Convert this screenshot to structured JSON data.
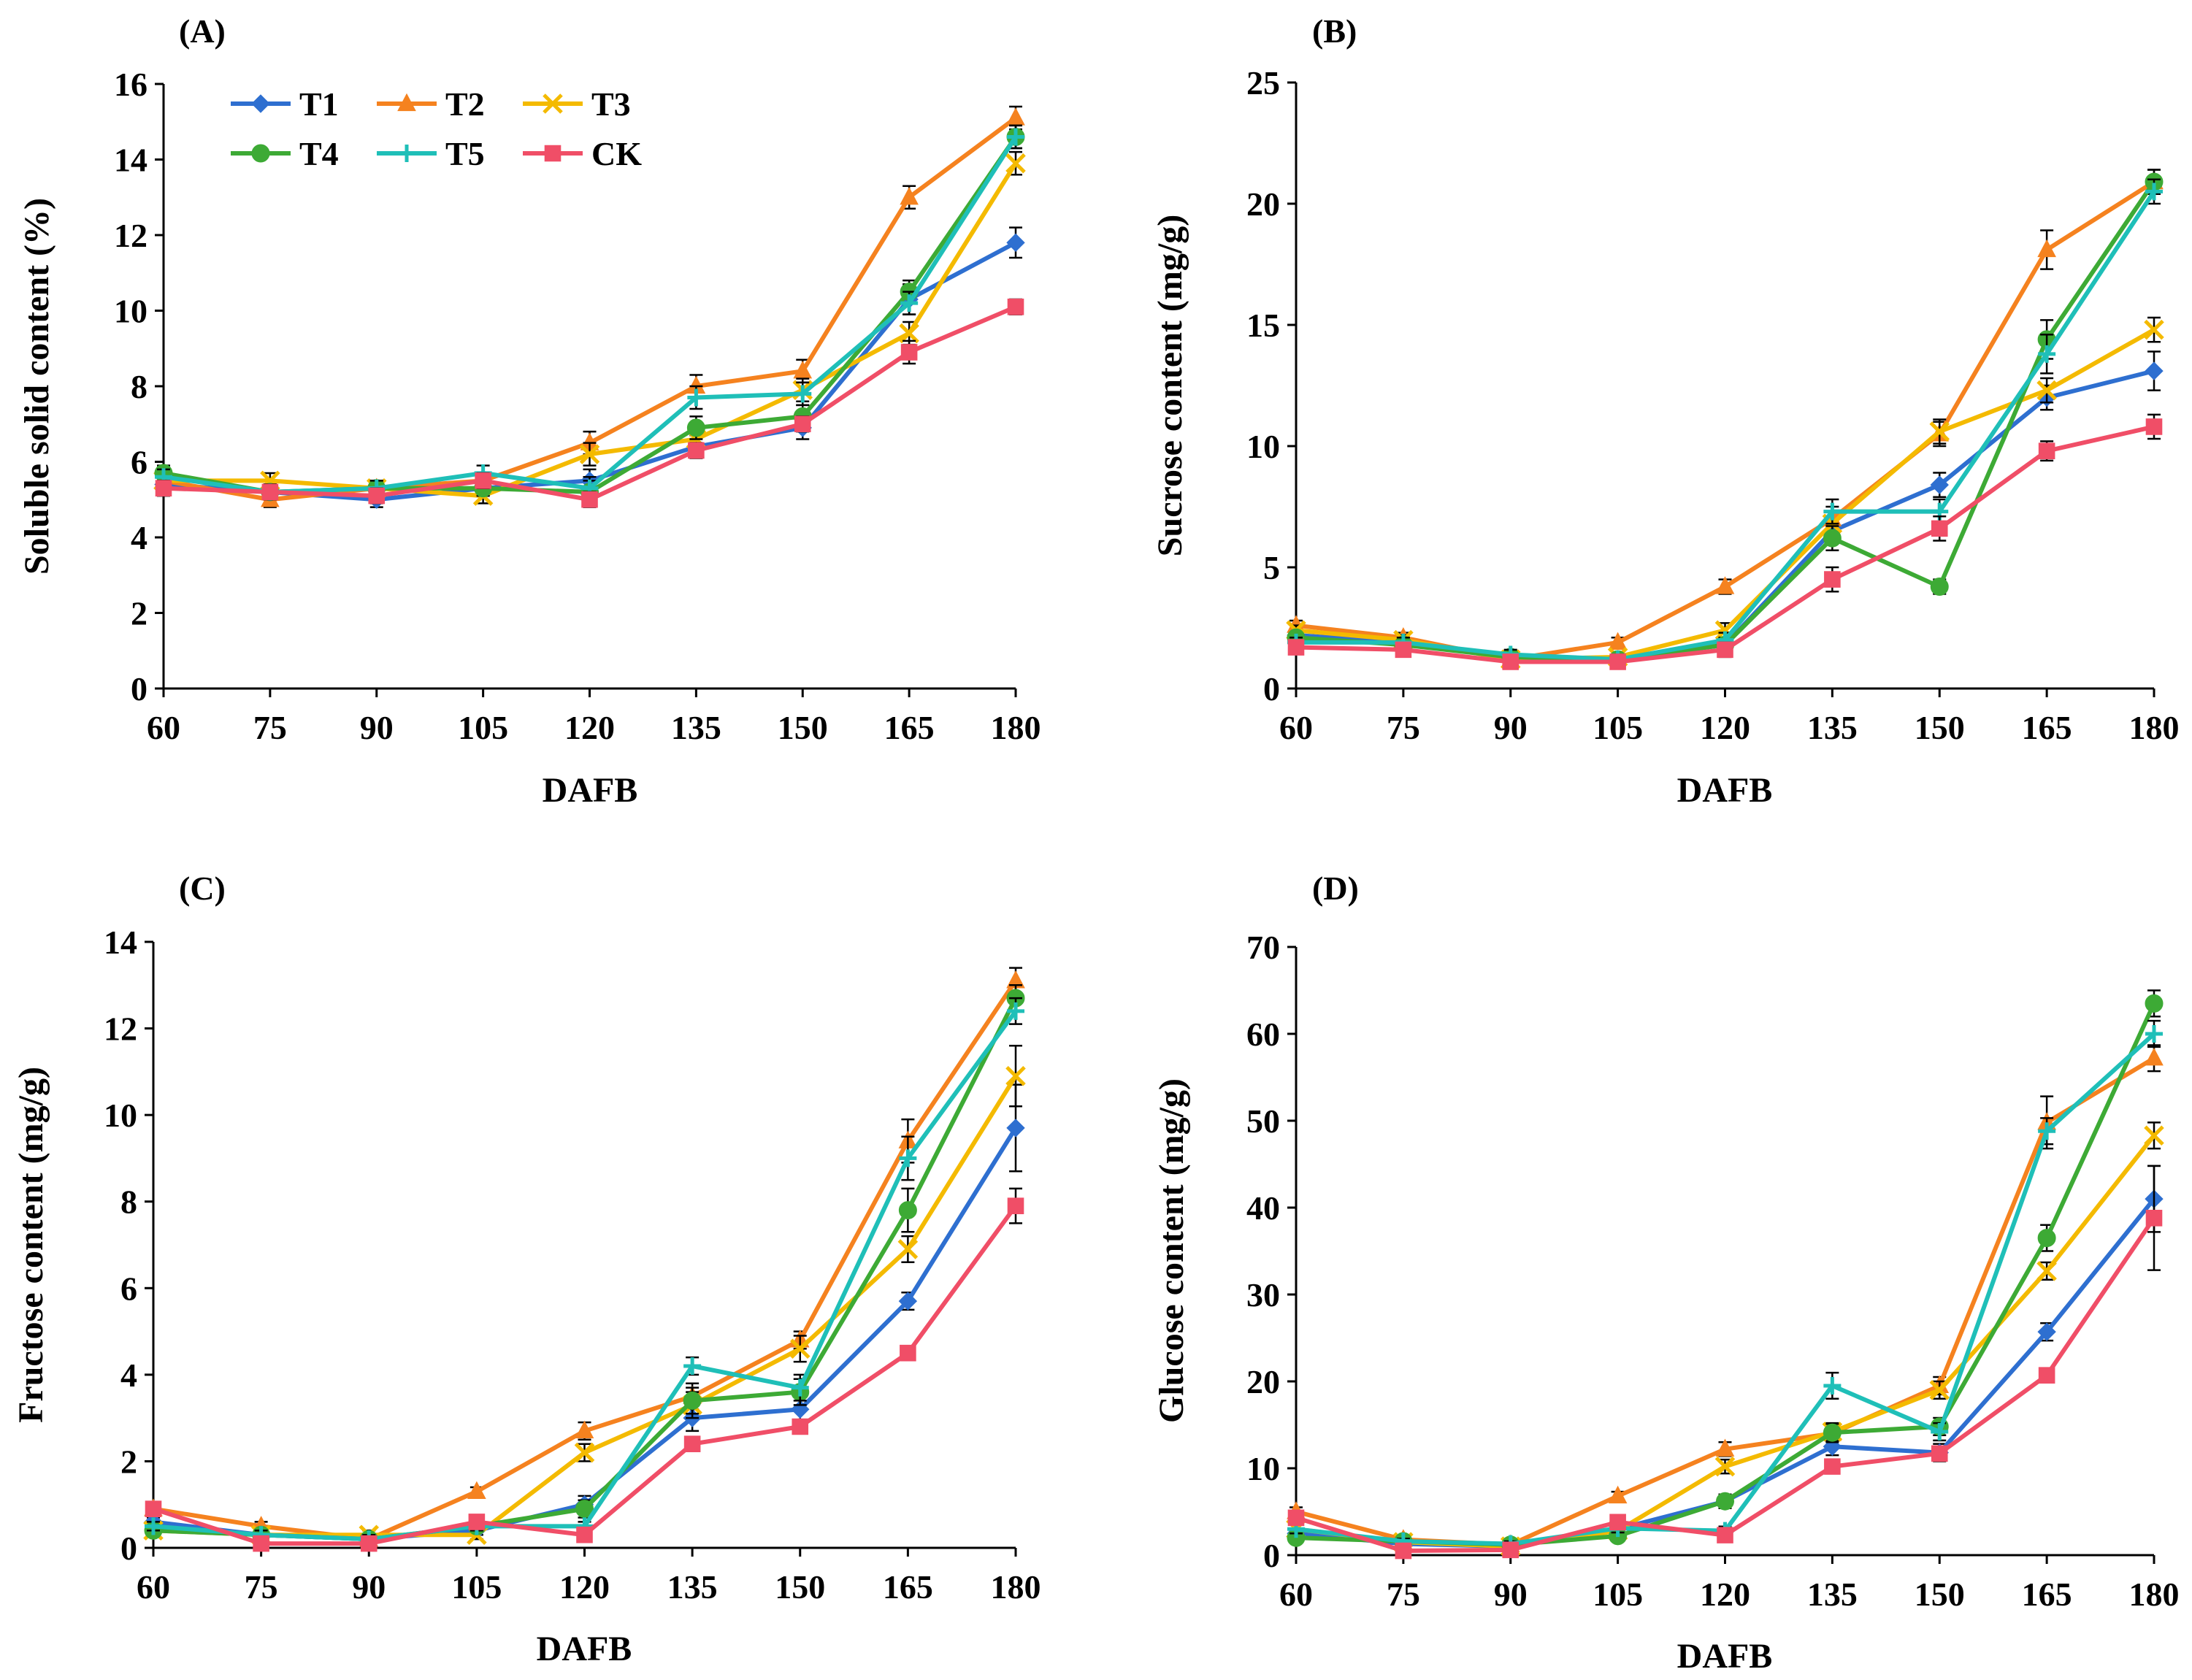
{
  "colors": {
    "T1": "#2E6FD0",
    "T2": "#F5821F",
    "T3": "#F4BA00",
    "T4": "#3DAA35",
    "T5": "#1FBFB8",
    "CK": "#F04E67"
  },
  "chart_data": [
    {
      "type": "line",
      "panel_label": "(A)",
      "xlabel": "DAFB",
      "ylabel": "Soluble solid content (%)",
      "x": [
        60,
        75,
        90,
        105,
        120,
        135,
        150,
        165,
        180
      ],
      "x_tick_labels": [
        "60",
        "75",
        "90",
        "105",
        "120",
        "135",
        "150",
        "165",
        "180"
      ],
      "ylim": [
        0,
        16
      ],
      "y_ticks": [
        0,
        2,
        4,
        6,
        8,
        10,
        12,
        14,
        16
      ],
      "y_tick_labels": [
        "0",
        "2",
        "4",
        "6",
        "8",
        "10",
        "12",
        "14",
        "16"
      ],
      "legend": true,
      "legend_position": "top-left",
      "series": [
        {
          "name": "T1",
          "marker": "diamond",
          "values": [
            5.4,
            5.2,
            5.0,
            5.3,
            5.5,
            6.4,
            6.9,
            10.3,
            11.8
          ],
          "errors": [
            0.2,
            0.2,
            0.2,
            0.2,
            0.3,
            0.3,
            0.3,
            0.4,
            0.4
          ]
        },
        {
          "name": "T2",
          "marker": "triangle",
          "values": [
            5.5,
            5.0,
            5.3,
            5.5,
            6.5,
            8.0,
            8.4,
            13.0,
            15.1
          ],
          "errors": [
            0.2,
            0.2,
            0.2,
            0.2,
            0.3,
            0.3,
            0.3,
            0.3,
            0.3
          ]
        },
        {
          "name": "T3",
          "marker": "x",
          "values": [
            5.5,
            5.5,
            5.3,
            5.1,
            6.2,
            6.6,
            7.9,
            9.4,
            13.9
          ],
          "errors": [
            0.2,
            0.2,
            0.2,
            0.2,
            0.3,
            0.3,
            0.3,
            0.3,
            0.3
          ]
        },
        {
          "name": "T4",
          "marker": "circle",
          "values": [
            5.7,
            5.2,
            5.3,
            5.3,
            5.2,
            6.9,
            7.2,
            10.5,
            14.6
          ],
          "errors": [
            0.2,
            0.2,
            0.2,
            0.2,
            0.3,
            0.3,
            0.3,
            0.3,
            0.3
          ]
        },
        {
          "name": "T5",
          "marker": "plus",
          "values": [
            5.6,
            5.2,
            5.3,
            5.7,
            5.3,
            7.7,
            7.8,
            10.2,
            14.6
          ],
          "errors": [
            0.2,
            0.2,
            0.2,
            0.2,
            0.3,
            0.3,
            0.3,
            0.3,
            0.3
          ]
        },
        {
          "name": "CK",
          "marker": "square",
          "values": [
            5.3,
            5.2,
            5.1,
            5.5,
            5.0,
            6.3,
            7.0,
            8.9,
            10.1
          ],
          "errors": [
            0.2,
            0.2,
            0.2,
            0.2,
            0.2,
            0.2,
            0.2,
            0.3,
            0.2
          ]
        }
      ]
    },
    {
      "type": "line",
      "panel_label": "(B)",
      "xlabel": "DAFB",
      "ylabel": "Sucrose content (mg/g)",
      "x": [
        60,
        75,
        90,
        105,
        120,
        135,
        150,
        165,
        180
      ],
      "x_tick_labels": [
        "60",
        "75",
        "90",
        "105",
        "120",
        "135",
        "150",
        "165",
        "180"
      ],
      "ylim": [
        0,
        25
      ],
      "y_ticks": [
        0,
        5,
        10,
        15,
        20,
        25
      ],
      "y_tick_labels": [
        "0",
        "5",
        "10",
        "15",
        "20",
        "25"
      ],
      "legend": false,
      "series": [
        {
          "name": "T1",
          "marker": "diamond",
          "values": [
            2.2,
            1.9,
            1.3,
            1.2,
            1.8,
            6.5,
            8.4,
            12.0,
            13.1
          ],
          "errors": [
            0.2,
            0.2,
            0.2,
            0.2,
            0.3,
            0.5,
            0.5,
            0.5,
            0.8
          ]
        },
        {
          "name": "T2",
          "marker": "triangle",
          "values": [
            2.6,
            2.1,
            1.2,
            1.9,
            4.2,
            7.0,
            10.5,
            18.1,
            20.9
          ],
          "errors": [
            0.2,
            0.2,
            0.2,
            0.2,
            0.3,
            0.5,
            0.5,
            0.8,
            0.5
          ]
        },
        {
          "name": "T3",
          "marker": "x",
          "values": [
            2.4,
            2.0,
            1.2,
            1.3,
            2.4,
            6.8,
            10.6,
            12.3,
            14.8
          ],
          "errors": [
            0.2,
            0.2,
            0.2,
            0.2,
            0.3,
            0.5,
            0.5,
            0.5,
            0.5
          ]
        },
        {
          "name": "T4",
          "marker": "circle",
          "values": [
            2.1,
            1.8,
            1.3,
            1.2,
            1.8,
            6.2,
            4.2,
            14.4,
            20.9
          ],
          "errors": [
            0.2,
            0.2,
            0.2,
            0.2,
            0.3,
            0.5,
            0.3,
            0.8,
            0.5
          ]
        },
        {
          "name": "T5",
          "marker": "plus",
          "values": [
            1.9,
            1.9,
            1.4,
            1.2,
            2.0,
            7.3,
            7.3,
            13.8,
            20.5
          ],
          "errors": [
            0.2,
            0.2,
            0.2,
            0.2,
            0.3,
            0.5,
            0.5,
            0.8,
            0.5
          ]
        },
        {
          "name": "CK",
          "marker": "square",
          "values": [
            1.7,
            1.6,
            1.1,
            1.1,
            1.6,
            4.5,
            6.6,
            9.8,
            10.8
          ],
          "errors": [
            0.2,
            0.2,
            0.2,
            0.2,
            0.3,
            0.5,
            0.5,
            0.4,
            0.5
          ]
        }
      ]
    },
    {
      "type": "line",
      "panel_label": "(C)",
      "xlabel": "DAFB",
      "ylabel": "Fructose content (mg/g)",
      "x": [
        60,
        75,
        90,
        105,
        120,
        135,
        150,
        165,
        180
      ],
      "x_tick_labels": [
        "60",
        "75",
        "90",
        "105",
        "120",
        "135",
        "150",
        "165",
        "180"
      ],
      "ylim": [
        0,
        14
      ],
      "y_ticks": [
        0,
        2,
        4,
        6,
        8,
        10,
        12,
        14
      ],
      "y_tick_labels": [
        "0",
        "2",
        "4",
        "6",
        "8",
        "10",
        "12",
        "14"
      ],
      "legend": false,
      "series": [
        {
          "name": "T1",
          "marker": "diamond",
          "values": [
            0.6,
            0.3,
            0.2,
            0.4,
            1.0,
            3.0,
            3.2,
            5.7,
            9.7
          ],
          "errors": [
            0.1,
            0.1,
            0.1,
            0.1,
            0.2,
            0.3,
            0.3,
            0.2,
            1.0
          ]
        },
        {
          "name": "T2",
          "marker": "triangle",
          "values": [
            0.9,
            0.5,
            0.2,
            1.3,
            2.7,
            3.5,
            4.8,
            9.4,
            13.1
          ],
          "errors": [
            0.1,
            0.1,
            0.1,
            0.1,
            0.2,
            0.3,
            0.2,
            0.5,
            0.3
          ]
        },
        {
          "name": "T3",
          "marker": "x",
          "values": [
            0.4,
            0.3,
            0.3,
            0.3,
            2.2,
            3.3,
            4.6,
            6.9,
            10.9
          ],
          "errors": [
            0.1,
            0.1,
            0.1,
            0.1,
            0.2,
            0.3,
            0.3,
            0.3,
            0.7
          ]
        },
        {
          "name": "T4",
          "marker": "circle",
          "values": [
            0.4,
            0.3,
            0.2,
            0.5,
            0.9,
            3.4,
            3.6,
            7.8,
            12.7
          ],
          "errors": [
            0.1,
            0.1,
            0.1,
            0.1,
            0.2,
            0.3,
            0.3,
            0.5,
            0.3
          ]
        },
        {
          "name": "T5",
          "marker": "plus",
          "values": [
            0.5,
            0.3,
            0.2,
            0.5,
            0.5,
            4.2,
            3.7,
            9.0,
            12.4
          ],
          "errors": [
            0.1,
            0.1,
            0.1,
            0.1,
            0.1,
            0.2,
            0.3,
            0.5,
            0.3
          ]
        },
        {
          "name": "CK",
          "marker": "square",
          "values": [
            0.9,
            0.1,
            0.1,
            0.6,
            0.3,
            2.4,
            2.8,
            4.5,
            7.9
          ],
          "errors": [
            0.1,
            0.1,
            0.1,
            0.1,
            0.1,
            0.1,
            0.1,
            0.1,
            0.4
          ]
        }
      ]
    },
    {
      "type": "line",
      "panel_label": "(D)",
      "xlabel": "DAFB",
      "ylabel": "Glucose content (mg/g)",
      "x": [
        60,
        75,
        90,
        105,
        120,
        135,
        150,
        165,
        180
      ],
      "x_tick_labels": [
        "60",
        "75",
        "90",
        "105",
        "120",
        "135",
        "150",
        "165",
        "180"
      ],
      "ylim": [
        0,
        70
      ],
      "y_ticks": [
        0,
        10,
        20,
        30,
        40,
        50,
        60,
        70
      ],
      "y_tick_labels": [
        "0",
        "10",
        "20",
        "30",
        "40",
        "50",
        "60",
        "70"
      ],
      "legend": false,
      "series": [
        {
          "name": "T1",
          "marker": "diamond",
          "values": [
            2.5,
            1.3,
            1.0,
            3.0,
            6.2,
            12.5,
            11.8,
            25.7,
            41.0
          ],
          "errors": [
            0.5,
            0.3,
            0.3,
            0.5,
            0.8,
            1.0,
            1.0,
            1.0,
            3.8
          ]
        },
        {
          "name": "T2",
          "marker": "triangle",
          "values": [
            5.0,
            1.8,
            1.2,
            6.8,
            12.2,
            14.0,
            19.5,
            49.8,
            57.2
          ],
          "errors": [
            0.5,
            0.3,
            0.3,
            0.5,
            0.8,
            1.0,
            1.0,
            3.0,
            1.5
          ]
        },
        {
          "name": "T3",
          "marker": "x",
          "values": [
            3.0,
            1.5,
            1.0,
            2.8,
            10.2,
            14.2,
            19.0,
            32.7,
            48.3
          ],
          "errors": [
            0.5,
            0.3,
            0.3,
            0.5,
            0.8,
            1.0,
            1.0,
            1.0,
            1.5
          ]
        },
        {
          "name": "T4",
          "marker": "circle",
          "values": [
            2.0,
            1.6,
            1.2,
            2.2,
            6.2,
            14.1,
            14.8,
            36.5,
            63.5
          ],
          "errors": [
            0.5,
            0.3,
            0.3,
            0.5,
            0.8,
            1.0,
            1.0,
            1.5,
            1.5
          ]
        },
        {
          "name": "T5",
          "marker": "plus",
          "values": [
            3.0,
            1.6,
            1.3,
            3.1,
            2.8,
            19.5,
            14.2,
            48.8,
            60.0
          ],
          "errors": [
            0.5,
            0.3,
            0.3,
            0.5,
            0.5,
            1.5,
            1.0,
            1.5,
            1.5
          ]
        },
        {
          "name": "CK",
          "marker": "square",
          "values": [
            4.3,
            0.5,
            0.6,
            3.8,
            2.3,
            10.2,
            11.7,
            20.7,
            38.8
          ],
          "errors": [
            0.5,
            0.3,
            0.3,
            0.5,
            0.5,
            0.8,
            0.8,
            0.8,
            6.0
          ]
        }
      ]
    }
  ]
}
